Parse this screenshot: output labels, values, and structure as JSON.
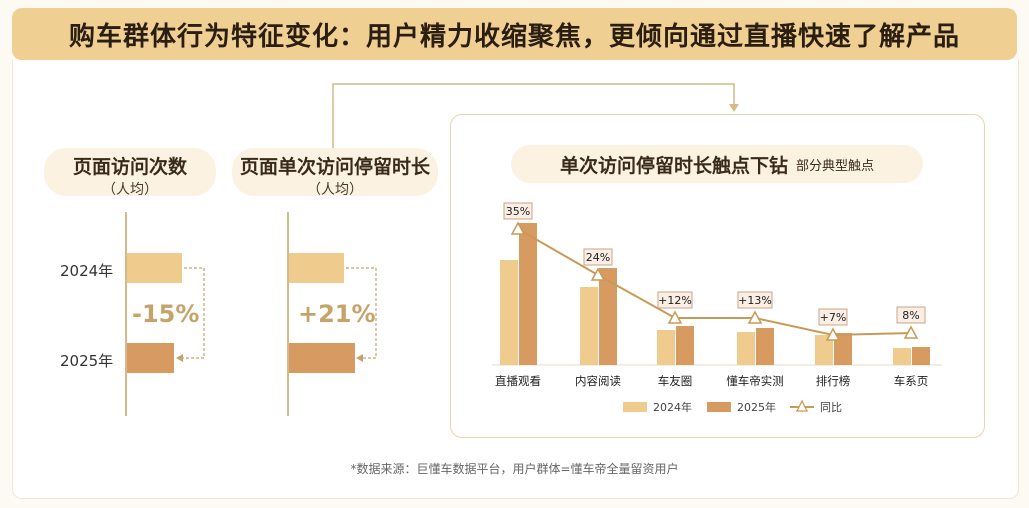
{
  "header": {
    "title": "购车群体行为特征变化：用户精力收缩聚焦，更倾向通过直播快速了解产品"
  },
  "left_metrics": [
    {
      "title": "页面访问次数",
      "subtitle": "（人均）",
      "change": "-15%"
    },
    {
      "title": "页面单次访问停留时长",
      "subtitle": "（人均）",
      "change": "+21%"
    }
  ],
  "years": [
    "2024年",
    "2025年"
  ],
  "drilldown": {
    "title": "单次访问停留时长触点下钻",
    "subtitle": "部分典型触点"
  },
  "chart_data": [
    {
      "type": "bar",
      "title": "页面访问次数（人均）",
      "categories": [
        "2024年",
        "2025年"
      ],
      "values": [
        100,
        85
      ],
      "change_label": "-15%"
    },
    {
      "type": "bar",
      "title": "页面单次访问停留时长（人均）",
      "categories": [
        "2024年",
        "2025年"
      ],
      "values": [
        100,
        121
      ],
      "change_label": "+21%"
    },
    {
      "type": "bar",
      "title": "单次访问停留时长触点下钻",
      "subtitle": "部分典型触点",
      "categories": [
        "直播观看",
        "内容阅读",
        "车友圈",
        "懂车帝实测",
        "排行榜",
        "车系页"
      ],
      "series": [
        {
          "name": "2024年",
          "type": "bar",
          "values": [
            105,
            78,
            35,
            33,
            30,
            17
          ]
        },
        {
          "name": "2025年",
          "type": "bar",
          "values": [
            142,
            97,
            39,
            37,
            32,
            18
          ]
        },
        {
          "name": "同比",
          "type": "line",
          "values": [
            35,
            24,
            12,
            13,
            7,
            8
          ],
          "labels": [
            "35%",
            "24%",
            "+12%",
            "+13%",
            "+7%",
            "8%"
          ]
        }
      ],
      "legend": [
        "2024年",
        "2025年",
        "同比"
      ],
      "legend_position": "bottom",
      "colors": {
        "y2024": "#efcb8d",
        "y2025": "#d79b62",
        "line": "#c99a56"
      }
    }
  ],
  "source": "*数据来源：巨懂车数据平台，用户群体=懂车帝全量留资用户"
}
